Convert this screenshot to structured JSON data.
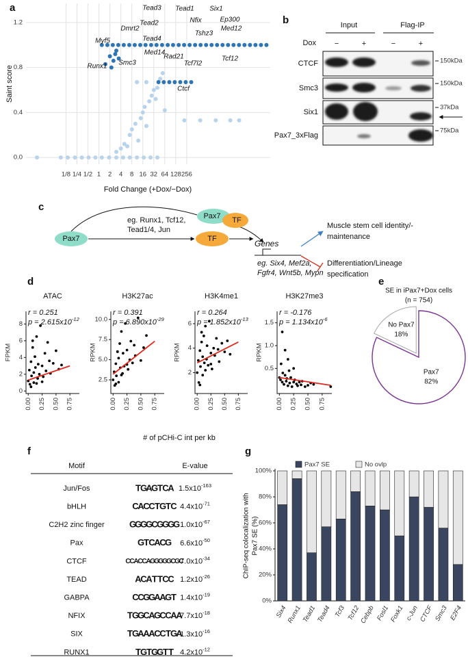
{
  "panel_labels": [
    "a",
    "b",
    "c",
    "d",
    "e",
    "f",
    "g"
  ],
  "chart_data": [
    {
      "type": "scatter",
      "xlabel": "Fold Change (+Dox/−Dox)",
      "ylabel": "Saint score",
      "xscale": "log2",
      "grid": true,
      "xlim": [
        0.01,
        50000
      ],
      "ylim": [
        -0.06,
        1.37
      ],
      "xticks": [
        {
          "value": 0.125,
          "label": "1/8"
        },
        {
          "value": 0.25,
          "label": "1/4"
        },
        {
          "value": 0.5,
          "label": "1/2"
        },
        1,
        2,
        4,
        8,
        16,
        32,
        64,
        128,
        256
      ],
      "yticks": [
        {
          "value": 0,
          "label": "0.0"
        },
        0.4,
        0.8,
        1.2
      ],
      "series": [
        {
          "color": "#b8d3ec",
          "x": [
            0.02,
            0.09,
            0.14,
            0.22,
            0.34,
            0.52,
            0.8,
            1.2,
            1.9,
            3,
            4.6,
            7,
            11,
            17,
            26,
            40,
            3,
            4,
            5,
            6,
            7,
            8,
            10,
            12,
            14,
            16,
            18,
            20,
            24,
            28,
            32,
            36,
            40,
            48,
            56,
            64,
            220,
            600,
            1600,
            4000,
            7000,
            11,
            20
          ],
          "values": [
            0,
            0,
            0,
            0,
            0,
            0,
            0,
            0,
            0,
            0,
            0,
            0,
            0,
            0,
            0,
            0,
            0.05,
            0.08,
            0.12,
            0.1,
            0.2,
            0.25,
            0.3,
            0.15,
            0.35,
            0.4,
            0.45,
            0.28,
            0.5,
            0.55,
            0.6,
            0.52,
            0.62,
            0.7,
            0.75,
            0.42,
            0.33,
            0.33,
            0.33,
            0.33,
            0.33,
            0.67,
            0.67
          ]
        },
        {
          "color": "#2e75b6",
          "x": [
            1.2,
            1.7,
            2.4,
            3.4,
            4.8,
            6.8,
            9.6,
            13.6,
            19,
            27,
            38,
            54,
            77,
            108,
            154,
            217,
            307,
            434,
            614,
            869,
            1229,
            1738,
            2458,
            3476,
            4916,
            6951,
            9830,
            13900,
            19660,
            27800,
            39300,
            1.5,
            2,
            2.5,
            3,
            3.5,
            2.2,
            2.8,
            43,
            60,
            85,
            120,
            170,
            240,
            340
          ],
          "values": [
            1,
            1,
            1,
            1,
            1,
            1,
            1,
            1,
            1,
            1,
            1,
            1,
            1,
            1,
            1,
            1,
            1,
            1,
            1,
            1,
            1,
            1,
            1,
            1,
            1,
            1,
            1,
            1,
            1,
            1,
            1,
            0.83,
            0.9,
            0.86,
            0.95,
            0.88,
            0.8,
            0.92,
            0.67,
            0.67,
            0.67,
            0.67,
            0.67,
            0.67,
            0.67
          ]
        }
      ],
      "annotations": [
        "Tead3",
        "Tead1",
        "Six1",
        "Dmrt2",
        "Tead2",
        "Nfix",
        "Ep300",
        "Myf5",
        "Tead4",
        "Med14",
        "Tshz3",
        "Med12",
        "Runx1",
        "Smc3",
        "Rad21",
        "Tcf7l2",
        "Tcf12",
        "Ctcf"
      ]
    },
    {
      "type": "scatter",
      "title": "ATAC",
      "ylabel": "FPKM",
      "xlabel": "# of pCHi-C int per kb",
      "r_text": "r = 0.251",
      "p_text": "p = 2.615x10",
      "p_exp": "-12",
      "xlim": [
        -0.04,
        0.92
      ],
      "ylim": [
        -0.3,
        9.5
      ],
      "xticks": [
        {
          "value": 0,
          "label": "0.00"
        },
        0.25,
        {
          "value": 0.5,
          "label": "0.50"
        },
        0.75
      ],
      "yticks": [
        0,
        2,
        4,
        6,
        8
      ],
      "series": [
        {
          "color": "#000000",
          "x": [
            0,
            0.02,
            0.03,
            0.05,
            0.06,
            0.08,
            0.1,
            0.1,
            0.12,
            0.13,
            0.15,
            0.17,
            0.18,
            0.2,
            0.22,
            0.25,
            0.27,
            0.3,
            0.32,
            0.35,
            0.38,
            0.4,
            0.45,
            0.5,
            0.55,
            0.6,
            0.05,
            0.15,
            0.25,
            0.08
          ],
          "values": [
            1.2,
            2.5,
            0.8,
            3.5,
            1.8,
            5.2,
            2.2,
            1.0,
            4.1,
            2.8,
            6.5,
            1.5,
            3.2,
            2.0,
            7.8,
            3.0,
            1.7,
            4.5,
            2.4,
            5.8,
            3.6,
            2.1,
            3.3,
            4.8,
            2.6,
            3.1,
            0.5,
            0.9,
            1.1,
            6.0
          ]
        }
      ],
      "fit": {
        "color": "#e0281e",
        "x": [
          0,
          0.75
        ],
        "values": [
          1.3,
          3.0
        ]
      }
    },
    {
      "type": "scatter",
      "title": "H3K27ac",
      "ylabel": "RPKM",
      "r_text": "r = 0.391",
      "p_text": "p = 6.890x10",
      "p_exp": "-29",
      "xlim": [
        -0.04,
        0.92
      ],
      "ylim": [
        0.8,
        11
      ],
      "xticks": [
        {
          "value": 0,
          "label": "0.00"
        },
        0.25,
        {
          "value": 0.5,
          "label": "0.50"
        },
        0.75
      ],
      "yticks": [
        2.5,
        {
          "value": 5,
          "label": "5.0"
        },
        7.5,
        {
          "value": 10,
          "label": "10.0"
        }
      ],
      "series": [
        {
          "color": "#000000",
          "x": [
            0,
            0.02,
            0.03,
            0.05,
            0.06,
            0.08,
            0.1,
            0.1,
            0.12,
            0.13,
            0.15,
            0.17,
            0.18,
            0.2,
            0.22,
            0.25,
            0.27,
            0.3,
            0.32,
            0.35,
            0.38,
            0.4,
            0.45,
            0.5,
            0.55,
            0.6,
            0.05,
            0.15,
            0.25,
            0.08
          ],
          "values": [
            2.5,
            3.5,
            1.8,
            4.5,
            3.0,
            6.0,
            5.2,
            2.2,
            7.0,
            4.0,
            8.5,
            3.3,
            5.8,
            4.2,
            9.5,
            6.2,
            3.8,
            5.0,
            7.3,
            4.6,
            6.8,
            5.5,
            10.2,
            4.9,
            6.5,
            8.0,
            2.0,
            3.1,
            4.4,
            6.0
          ]
        }
      ],
      "fit": {
        "color": "#e0281e",
        "x": [
          0,
          0.75
        ],
        "values": [
          3.2,
          7.3
        ]
      }
    },
    {
      "type": "scatter",
      "title": "H3K4me1",
      "ylabel": "RPKM",
      "r_text": "r = 0.264",
      "p_text": "p = 1.852x10",
      "p_exp": "-13",
      "xlim": [
        -0.04,
        0.92
      ],
      "ylim": [
        0.3,
        7
      ],
      "xticks": [
        {
          "value": 0,
          "label": "0.00"
        },
        0.25,
        {
          "value": 0.5,
          "label": "0.50"
        },
        0.75
      ],
      "yticks": [
        2,
        4,
        6
      ],
      "series": [
        {
          "color": "#000000",
          "x": [
            0,
            0.02,
            0.03,
            0.05,
            0.06,
            0.08,
            0.1,
            0.1,
            0.12,
            0.13,
            0.15,
            0.17,
            0.18,
            0.2,
            0.22,
            0.25,
            0.27,
            0.3,
            0.32,
            0.35,
            0.38,
            0.4,
            0.45,
            0.5,
            0.55,
            0.6,
            0.05,
            0.15,
            0.25,
            0.08
          ],
          "values": [
            2.0,
            3.0,
            1.2,
            3.8,
            2.5,
            4.5,
            3.3,
            1.8,
            5.0,
            2.8,
            5.8,
            3.1,
            4.2,
            2.6,
            6.2,
            3.6,
            2.3,
            4.0,
            3.4,
            4.8,
            3.9,
            2.9,
            4.4,
            3.7,
            4.6,
            3.5,
            1.0,
            2.2,
            2.7,
            5.3
          ]
        }
      ],
      "fit": {
        "color": "#e0281e",
        "x": [
          0,
          0.75
        ],
        "values": [
          2.8,
          4.5
        ]
      }
    },
    {
      "type": "scatter",
      "title": "H3K27me3",
      "ylabel": "RPKM",
      "r_text": "r = -0.176",
      "p_text": "p = 1.134x10",
      "p_exp": "-6",
      "xlim": [
        -0.04,
        0.92
      ],
      "ylim": [
        -0.05,
        1.75
      ],
      "xticks": [
        {
          "value": 0,
          "label": "0.00"
        },
        0.25,
        {
          "value": 0.5,
          "label": "0.50"
        },
        0.75
      ],
      "yticks": [
        0.5,
        {
          "value": 1,
          "label": "1.0"
        },
        1.5
      ],
      "series": [
        {
          "color": "#000000",
          "x": [
            0,
            0.02,
            0.03,
            0.05,
            0.06,
            0.08,
            0.1,
            0.1,
            0.12,
            0.13,
            0.15,
            0.17,
            0.18,
            0.2,
            0.22,
            0.25,
            0.27,
            0.3,
            0.32,
            0.35,
            0.38,
            0.4,
            0.45,
            0.5,
            0.55,
            0.6,
            0.05,
            0.15,
            0.25,
            0.9
          ],
          "values": [
            0.3,
            0.25,
            0.6,
            0.2,
            0.4,
            0.15,
            0.35,
            0.9,
            0.22,
            0.28,
            0.12,
            0.45,
            0.18,
            0.3,
            0.1,
            0.2,
            0.25,
            0.16,
            0.12,
            0.2,
            0.14,
            0.22,
            0.1,
            0.13,
            0.18,
            0.15,
            1.3,
            0.7,
            0.5,
            0.1
          ]
        }
      ],
      "fit": {
        "color": "#e0281e",
        "x": [
          0,
          0.9
        ],
        "values": [
          0.3,
          0.13
        ]
      }
    },
    {
      "type": "pie",
      "title": "SE in iPax7+Dox cells",
      "subtitle": "(n = 754)",
      "categories": [
        "Pax7",
        "No Pax7"
      ],
      "values": [
        82,
        18
      ],
      "value_labels": [
        "82%",
        "18%"
      ],
      "colors": [
        "#7b3294",
        "#a8a8a8"
      ]
    },
    {
      "type": "stacked_bar",
      "ylabel": [
        "ChIP-seq colocalization with",
        "Pax7 SE (%)"
      ],
      "categories": [
        "Six4",
        "Runx1",
        "Tead1",
        "Tead4",
        "Tcf3",
        "Tcf12",
        "Cebpb",
        "Fosl1",
        "Foxk1",
        "c-Jun",
        "CTCF",
        "Smc3",
        "E2F4"
      ],
      "series": [
        {
          "name": "Pax7 SE",
          "color": "#3a4660",
          "values": [
            74,
            94,
            37,
            57,
            63,
            84,
            73,
            70,
            50,
            80,
            72,
            56,
            28
          ]
        },
        {
          "name": "No ovlp",
          "color": "#e6e6e6",
          "values": [
            26,
            6,
            63,
            43,
            37,
            16,
            27,
            30,
            50,
            20,
            28,
            44,
            72
          ]
        }
      ],
      "ylim": [
        0,
        100
      ],
      "yticks": [
        {
          "value": 0,
          "label": "0%"
        },
        {
          "value": 20,
          "label": "20%"
        },
        {
          "value": 40,
          "label": "40%"
        },
        {
          "value": 60,
          "label": "60%"
        },
        {
          "value": 80,
          "label": "80%"
        },
        {
          "value": 100,
          "label": "100%"
        }
      ]
    }
  ],
  "blot": {
    "header_groups": [
      "Input",
      "Flag-IP"
    ],
    "treatment": "Dox",
    "signs": [
      "−",
      "+",
      "−",
      "+"
    ],
    "rows": [
      {
        "label": "CTCF",
        "marker": "150kDa"
      },
      {
        "label": "Smc3",
        "marker": "150kDa"
      },
      {
        "label": "Six1",
        "marker": "37kDa"
      },
      {
        "label": "Pax7_3xFlag",
        "marker": "75kDa"
      }
    ]
  },
  "diagram": {
    "nodes": [
      "Pax7",
      "TF",
      "Pax7",
      "TF"
    ],
    "tf_examples": [
      "eg. Runx1, Tcf12,",
      "Tead1/4, Jun"
    ],
    "genes": "Genes",
    "gene_examples": [
      "eg. Six4, Mef2a,",
      "Fgfr4, Wnt5b, Mypn"
    ],
    "outcomes": [
      [
        "Muscle stem cell identity/-",
        "maintenance"
      ],
      [
        "Differentiation/Lineage",
        "specification"
      ]
    ]
  },
  "motif_table": {
    "header": [
      "Motif",
      "E-value"
    ],
    "rows": [
      {
        "motif": "Jun/Fos",
        "logo": "TGAGTCA",
        "evalue": "1.5x10",
        "exponent": "-163"
      },
      {
        "motif": "bHLH",
        "logo": "CACCTGTC",
        "evalue": "4.4x10",
        "exponent": "-71"
      },
      {
        "motif": "C2H2 zinc finger",
        "logo": "GGGGCGGGG",
        "evalue": "1.0x10",
        "exponent": "-67"
      },
      {
        "motif": "Pax",
        "logo": "GTCACG",
        "evalue": "6.6x10",
        "exponent": "-50"
      },
      {
        "motif": "CTCF",
        "logo": "CCACCAGGGGGCGC",
        "evalue": "7.0x10",
        "exponent": "-34"
      },
      {
        "motif": "TEAD",
        "logo": "ACATTCC",
        "evalue": "1.2x10",
        "exponent": "-26"
      },
      {
        "motif": "GABPA",
        "logo": "CCGGAAGT",
        "evalue": "1.4x10",
        "exponent": "-19"
      },
      {
        "motif": "NFIX",
        "logo": "TGGCAGCCAA",
        "evalue": "7.7x10",
        "exponent": "-18"
      },
      {
        "motif": "SIX",
        "logo": "TGAAACCTGA",
        "evalue": "1.3x10",
        "exponent": "-16"
      },
      {
        "motif": "RUNX1",
        "logo": "TGTGGTT",
        "evalue": "4.2x10",
        "exponent": "-12"
      }
    ]
  }
}
